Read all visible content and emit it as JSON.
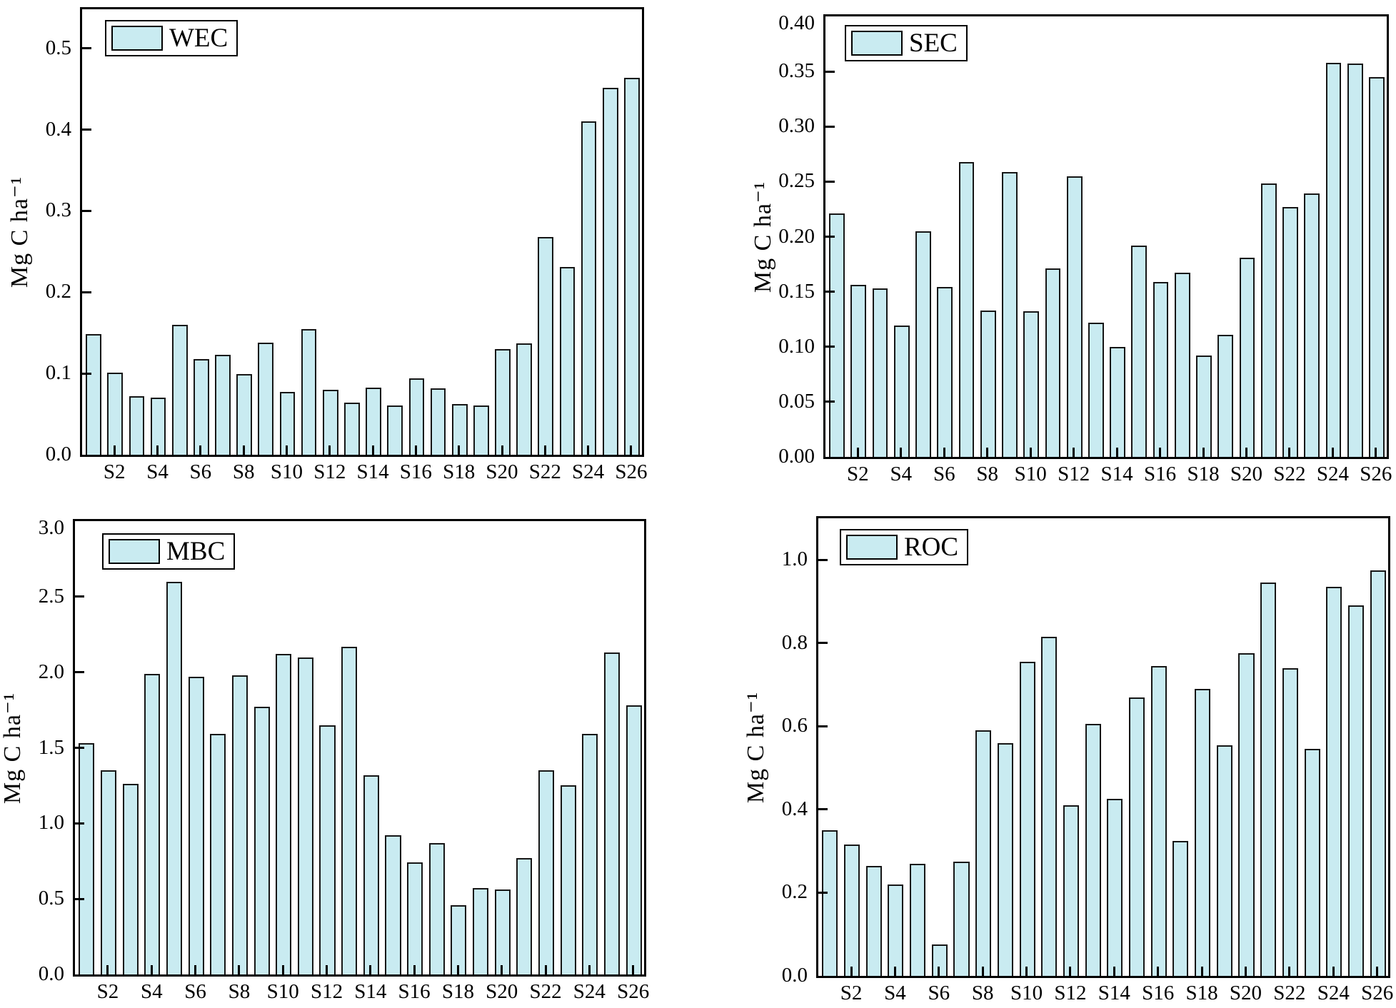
{
  "figure": {
    "background": "#ffffff",
    "bar_fill": "#c9ebf1",
    "bar_edge": "#161616",
    "axis_color": "#000000",
    "units_label": "Mg C ha⁻¹"
  },
  "chart_data": [
    {
      "type": "bar",
      "legend": "WEC",
      "ylabel": "Mg C ha⁻¹",
      "xlabel": "",
      "ylim": [
        0,
        0.548
      ],
      "grid": false,
      "legend_position": "top-left-inside",
      "categories": [
        "S1",
        "S2",
        "S3",
        "S4",
        "S5",
        "S6",
        "S7",
        "S8",
        "S9",
        "S10",
        "S11",
        "S12",
        "S13",
        "S14",
        "S15",
        "S16",
        "S17",
        "S18",
        "S19",
        "S20",
        "S21",
        "S22",
        "S23",
        "S24",
        "S25",
        "S26"
      ],
      "xticks_shown": [
        "S2",
        "S4",
        "S6",
        "S8",
        "S10",
        "S12",
        "S14",
        "S16",
        "S18",
        "S20",
        "S22",
        "S24",
        "S26"
      ],
      "yticks": [
        0,
        0.1,
        0.2,
        0.3,
        0.4,
        0.5
      ],
      "ytick_labels": [
        "0.0",
        "0.1",
        "0.2",
        "0.3",
        "0.4",
        "0.5"
      ],
      "values": [
        0.148,
        0.101,
        0.072,
        0.07,
        0.16,
        0.118,
        0.123,
        0.099,
        0.138,
        0.077,
        0.155,
        0.08,
        0.064,
        0.083,
        0.061,
        0.094,
        0.082,
        0.062,
        0.061,
        0.13,
        0.137,
        0.268,
        0.231,
        0.41,
        0.451,
        0.464
      ]
    },
    {
      "type": "bar",
      "legend": "SEC",
      "ylabel": "Mg C ha⁻¹",
      "xlabel": "",
      "ylim": [
        0,
        0.4
      ],
      "grid": false,
      "legend_position": "top-left-inside",
      "categories": [
        "S1",
        "S2",
        "S3",
        "S4",
        "S5",
        "S6",
        "S7",
        "S8",
        "S9",
        "S10",
        "S11",
        "S12",
        "S13",
        "S14",
        "S15",
        "S16",
        "S17",
        "S18",
        "S19",
        "S20",
        "S21",
        "S22",
        "S23",
        "S24",
        "S25",
        "S26"
      ],
      "xticks_shown": [
        "S2",
        "S4",
        "S6",
        "S8",
        "S10",
        "S12",
        "S14",
        "S16",
        "S18",
        "S20",
        "S22",
        "S24",
        "S26"
      ],
      "yticks": [
        0,
        0.05,
        0.1,
        0.15,
        0.2,
        0.25,
        0.3,
        0.35,
        0.4
      ],
      "ytick_labels": [
        "0.00",
        "0.05",
        "0.10",
        "0.15",
        "0.20",
        "0.25",
        "0.30",
        "0.35",
        "0.40"
      ],
      "values": [
        0.221,
        0.156,
        0.153,
        0.119,
        0.205,
        0.154,
        0.268,
        0.133,
        0.259,
        0.132,
        0.171,
        0.255,
        0.122,
        0.1,
        0.192,
        0.159,
        0.167,
        0.092,
        0.111,
        0.181,
        0.248,
        0.227,
        0.239,
        0.358,
        0.357,
        0.345
      ]
    },
    {
      "type": "bar",
      "legend": "MBC",
      "ylabel": "Mg C ha⁻¹",
      "xlabel": "",
      "ylim": [
        0,
        3.0
      ],
      "grid": false,
      "legend_position": "top-left-inside",
      "categories": [
        "S1",
        "S2",
        "S3",
        "S4",
        "S5",
        "S6",
        "S7",
        "S8",
        "S9",
        "S10",
        "S11",
        "S12",
        "S13",
        "S14",
        "S15",
        "S16",
        "S17",
        "S18",
        "S19",
        "S20",
        "S21",
        "S22",
        "S23",
        "S24",
        "S25",
        "S26"
      ],
      "xticks_shown": [
        "S2",
        "S4",
        "S6",
        "S8",
        "S10",
        "S12",
        "S14",
        "S16",
        "S18",
        "S20",
        "S22",
        "S24",
        "S26"
      ],
      "yticks": [
        0,
        0.5,
        1.0,
        1.5,
        2.0,
        2.5,
        3.0
      ],
      "ytick_labels": [
        "0.0",
        "0.5",
        "1.0",
        "1.5",
        "2.0",
        "2.5",
        "3.0"
      ],
      "values": [
        1.53,
        1.35,
        1.26,
        1.99,
        2.6,
        1.97,
        1.59,
        1.98,
        1.77,
        2.12,
        2.1,
        1.65,
        2.17,
        1.32,
        0.92,
        0.74,
        0.87,
        0.46,
        0.57,
        0.56,
        0.77,
        1.35,
        1.25,
        1.59,
        2.13,
        1.78
      ]
    },
    {
      "type": "bar",
      "legend": "ROC",
      "ylabel": "Mg C ha⁻¹",
      "xlabel": "",
      "ylim": [
        0,
        1.1
      ],
      "grid": false,
      "legend_position": "top-left-inside",
      "categories": [
        "S1",
        "S2",
        "S3",
        "S4",
        "S5",
        "S6",
        "S7",
        "S8",
        "S9",
        "S10",
        "S11",
        "S12",
        "S13",
        "S14",
        "S15",
        "S16",
        "S17",
        "S18",
        "S19",
        "S20",
        "S21",
        "S22",
        "S23",
        "S24",
        "S25",
        "S26"
      ],
      "xticks_shown": [
        "S2",
        "S4",
        "S6",
        "S8",
        "S10",
        "S12",
        "S14",
        "S16",
        "S18",
        "S20",
        "S22",
        "S24",
        "S26"
      ],
      "yticks": [
        0,
        0.2,
        0.4,
        0.6,
        0.8,
        1.0
      ],
      "ytick_labels": [
        "0.0",
        "0.2",
        "0.4",
        "0.6",
        "0.8",
        "1.0"
      ],
      "values": [
        0.35,
        0.315,
        0.265,
        0.22,
        0.27,
        0.075,
        0.275,
        0.59,
        0.56,
        0.755,
        0.815,
        0.41,
        0.605,
        0.425,
        0.67,
        0.745,
        0.325,
        0.69,
        0.555,
        0.775,
        0.945,
        0.74,
        0.545,
        0.935,
        0.89,
        0.975
      ]
    }
  ]
}
